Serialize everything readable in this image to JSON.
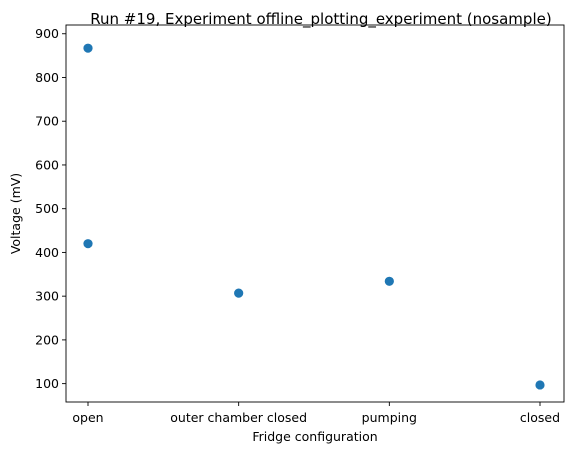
{
  "chart_data": {
    "type": "scatter",
    "title": "Run #19, Experiment offline_plotting_experiment (nosample)",
    "xlabel": "Fridge configuration",
    "ylabel": "Voltage (mV)",
    "categories": [
      "open",
      "outer chamber closed",
      "pumping",
      "closed"
    ],
    "yticks": [
      100,
      200,
      300,
      400,
      500,
      600,
      700,
      800,
      900
    ],
    "ylim": [
      58,
      920
    ],
    "grid": false,
    "color": "#1f77b4",
    "points": [
      {
        "x": "open",
        "y": 867
      },
      {
        "x": "open",
        "y": 420
      },
      {
        "x": "outer chamber closed",
        "y": 307
      },
      {
        "x": "pumping",
        "y": 334
      },
      {
        "x": "closed",
        "y": 97
      }
    ]
  }
}
